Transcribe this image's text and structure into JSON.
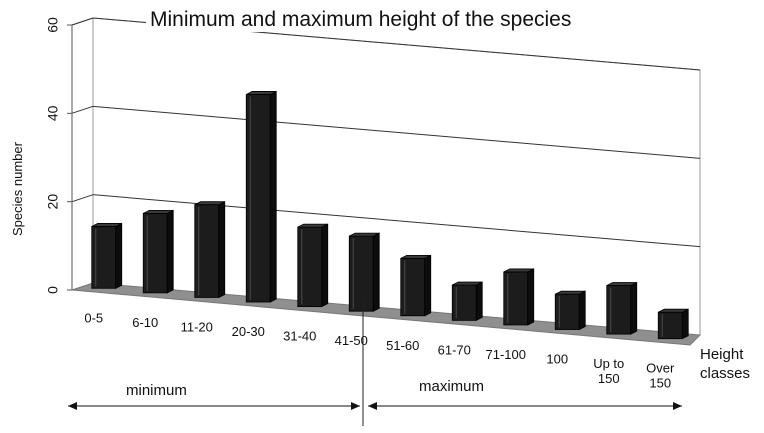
{
  "chart_data": {
    "type": "bar",
    "title": "Minimum and maximum height of the species",
    "xlabel": "Height classes",
    "ylabel": "Species number",
    "ylim": [
      0,
      60
    ],
    "yticks": [
      "0",
      "20",
      "40",
      "60"
    ],
    "grid": true,
    "categories": [
      "0-5",
      "6-10",
      "11-20",
      "20-30",
      "31-40",
      "41-50",
      "51-60",
      "61-70",
      "71-100",
      "100",
      "Up to 150",
      "Over 150"
    ],
    "values": [
      14,
      18,
      21,
      47,
      18,
      17,
      13,
      8,
      12,
      8,
      11,
      6
    ],
    "groups": [
      {
        "label": "minimum",
        "categories": [
          "0-5",
          "6-10",
          "11-20",
          "20-30",
          "31-40",
          "41-50"
        ]
      },
      {
        "label": "maximum",
        "categories": [
          "51-60",
          "61-70",
          "71-100",
          "100",
          "Up to 150",
          "Over 150"
        ]
      }
    ],
    "bar_color": "#1c1c1c",
    "floor_color": "#8f8f8f"
  }
}
